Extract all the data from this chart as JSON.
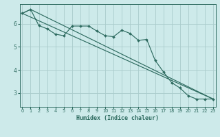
{
  "xlabel": "Humidex (Indice chaleur)",
  "background_color": "#cdeaea",
  "grid_color": "#aacccc",
  "line_color": "#2e6b60",
  "x_ticks": [
    0,
    1,
    2,
    3,
    4,
    5,
    6,
    7,
    8,
    9,
    10,
    11,
    12,
    13,
    14,
    15,
    16,
    17,
    18,
    19,
    20,
    21,
    22,
    23
  ],
  "y_ticks": [
    3,
    4,
    5,
    6
  ],
  "ylim": [
    2.4,
    6.85
  ],
  "xlim": [
    -0.3,
    23.3
  ],
  "series1_x": [
    0,
    1,
    2,
    3,
    4,
    5,
    6,
    7,
    8,
    9,
    10,
    11,
    12,
    13,
    14,
    15,
    16,
    17,
    18,
    19,
    20,
    21,
    22,
    23
  ],
  "series1_y": [
    6.45,
    6.62,
    5.92,
    5.78,
    5.55,
    5.48,
    5.9,
    5.9,
    5.9,
    5.68,
    5.48,
    5.44,
    5.72,
    5.58,
    5.28,
    5.32,
    4.42,
    3.92,
    3.45,
    3.22,
    2.88,
    2.74,
    2.74,
    2.74
  ],
  "series2_x": [
    0,
    23
  ],
  "series2_y": [
    6.45,
    2.74
  ],
  "series3_x": [
    0,
    1,
    23
  ],
  "series3_y": [
    6.45,
    6.62,
    2.74
  ]
}
